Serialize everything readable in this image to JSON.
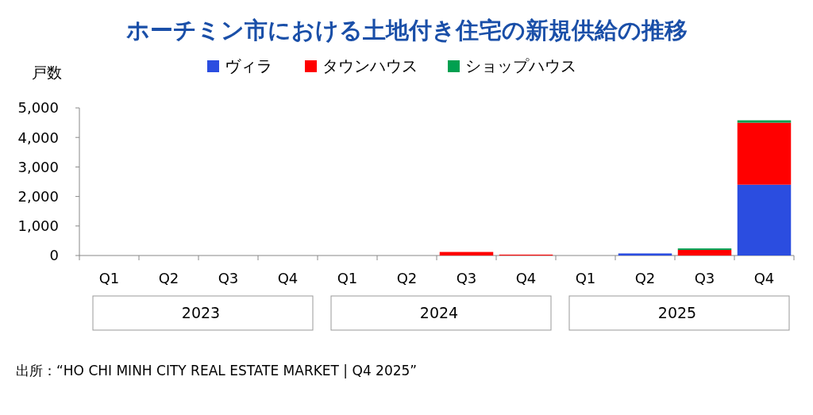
{
  "chart_data": {
    "type": "bar",
    "title": "ホーチミン市における土地付き住宅の新規供給の推移",
    "ylabel": "戸数",
    "categories": [
      "Q1",
      "Q2",
      "Q3",
      "Q4",
      "Q1",
      "Q2",
      "Q3",
      "Q4",
      "Q1",
      "Q2",
      "Q3",
      "Q4"
    ],
    "stacked": true,
    "series": [
      {
        "name": "ヴィラ",
        "color": "#2b4de0",
        "values": [
          0,
          0,
          0,
          0,
          0,
          0,
          0,
          0,
          0,
          70,
          0,
          2400
        ]
      },
      {
        "name": "タウンハウス",
        "color": "#ff0000",
        "values": [
          0,
          0,
          0,
          0,
          0,
          0,
          120,
          30,
          0,
          0,
          190,
          2100
        ]
      },
      {
        "name": "ショップハウス",
        "color": "#00a050",
        "values": [
          0,
          0,
          0,
          0,
          0,
          0,
          0,
          0,
          0,
          0,
          50,
          80
        ]
      }
    ],
    "ylim": [
      0,
      5000
    ],
    "yticks": [
      {
        "value": 0,
        "label": "0"
      },
      {
        "value": 1000,
        "label": "1,000"
      },
      {
        "value": 2000,
        "label": "2,000"
      },
      {
        "value": 3000,
        "label": "3,000"
      },
      {
        "value": 4000,
        "label": "4,000"
      },
      {
        "value": 5000,
        "label": "5,000"
      }
    ],
    "legend": "top",
    "grid": false,
    "annotations": [
      "2023",
      "2024",
      "2025",
      "出所：“HO CHI MINH CITY REAL ESTATE MARKET | Q4 2025”"
    ]
  }
}
